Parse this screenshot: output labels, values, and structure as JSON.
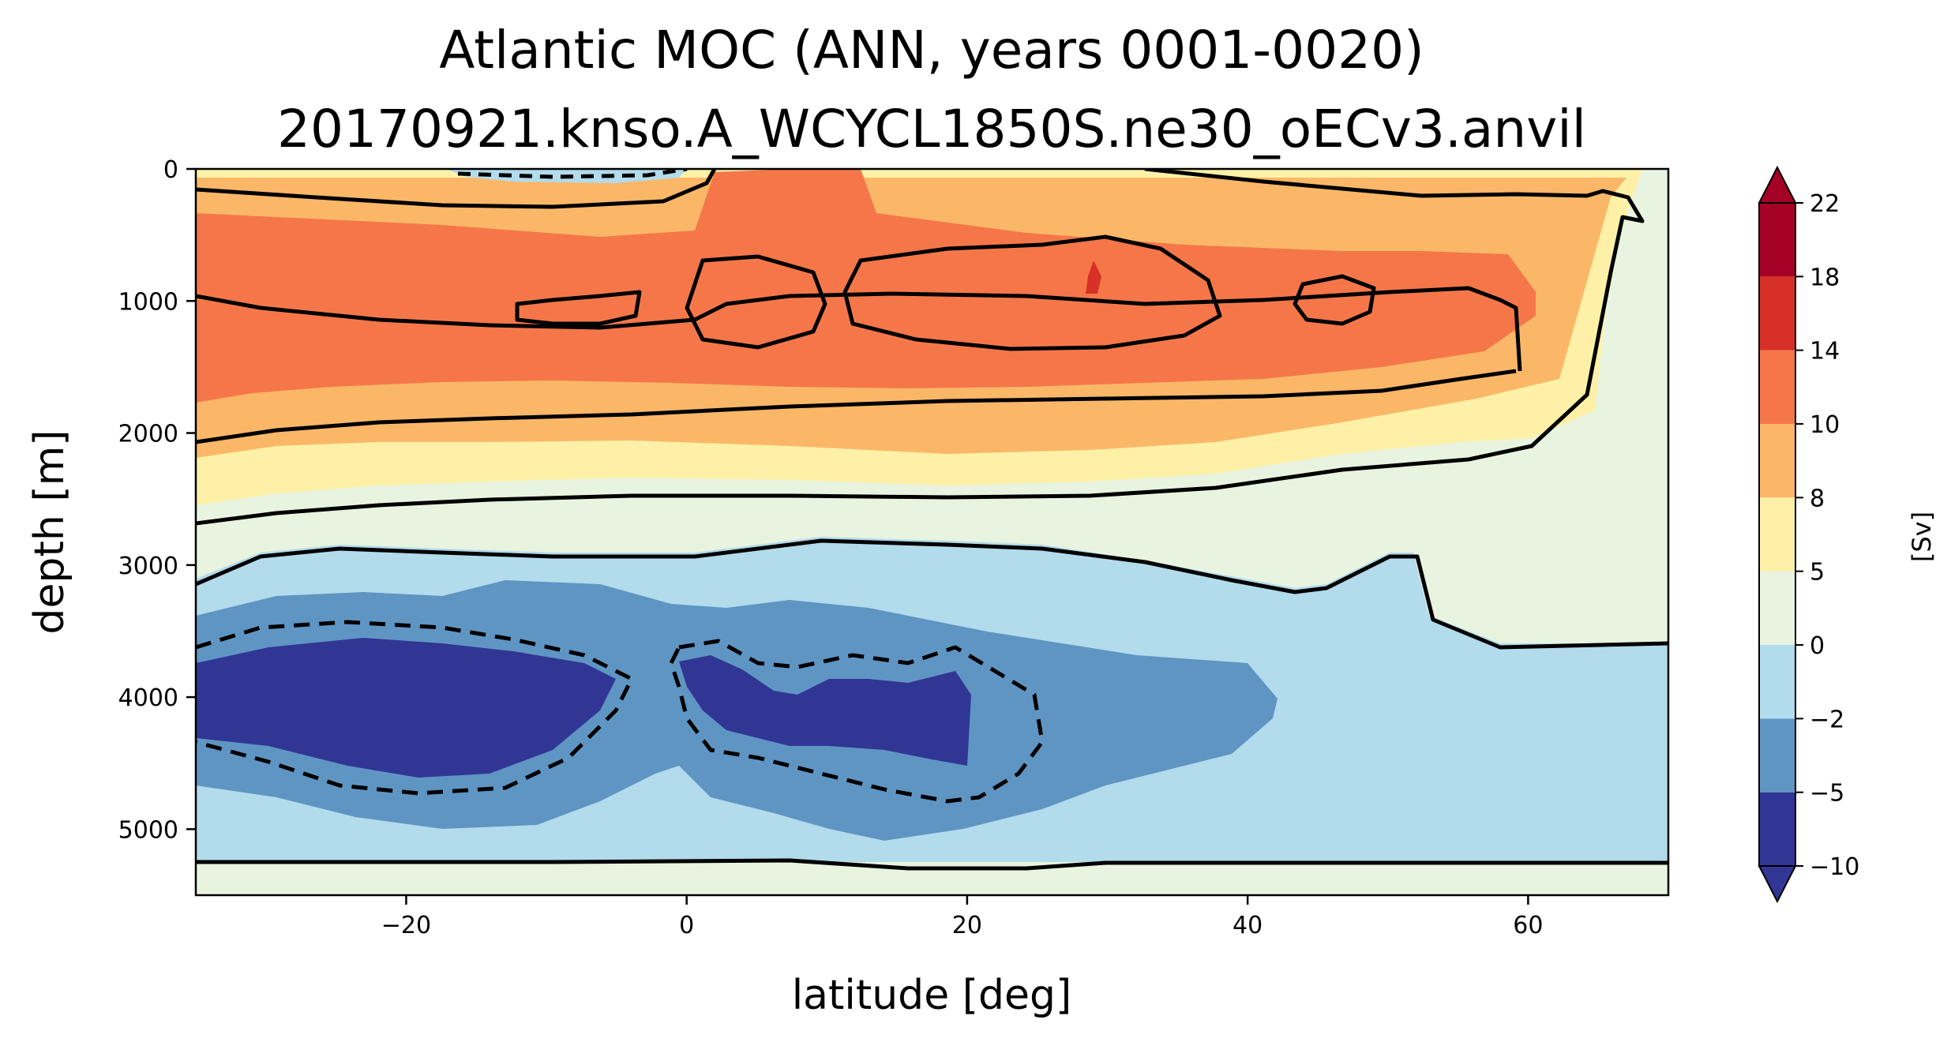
{
  "chart_data": {
    "type": "contourf",
    "title": "Atlantic MOC (ANN, years 0001-0020)",
    "subtitle": "20170921.knso.A_WCYCL1850S.ne30_oECv3.anvil",
    "xlabel": "latitude [deg]",
    "ylabel": "depth [m]",
    "xlim": [
      -35,
      70
    ],
    "ylim": [
      5500,
      0
    ],
    "y_inverted": true,
    "xticks": [
      -20,
      0,
      20,
      40,
      60
    ],
    "xtick_labels": [
      "−20",
      "0",
      "20",
      "40",
      "60"
    ],
    "yticks": [
      0,
      1000,
      2000,
      3000,
      4000,
      5000
    ],
    "ytick_labels": [
      "0",
      "1000",
      "2000",
      "3000",
      "4000",
      "5000"
    ],
    "colorbar": {
      "label": "[Sv]",
      "levels": [
        -10,
        -5,
        -2,
        0,
        5,
        8,
        10,
        14,
        18,
        22
      ],
      "level_labels": [
        "−10",
        "−5",
        "−2",
        "0",
        "5",
        "8",
        "10",
        "14",
        "18",
        "22"
      ],
      "colors": [
        "#313695",
        "#5f95c3",
        "#b2dbeb",
        "#e8f4e0",
        "#fef1a7",
        "#fbb768",
        "#f57749",
        "#d73027",
        "#a50026"
      ],
      "under_color": "#313695",
      "over_color": "#a50026",
      "extend": "both"
    },
    "regions": [
      {
        "band": "5 to 8",
        "lat_range": [
          -35,
          67
        ],
        "depth_range": [
          0,
          2650
        ]
      },
      {
        "band": "8 to 10",
        "lat_range": [
          -35,
          66
        ],
        "depth_range": [
          50,
          2300
        ]
      },
      {
        "band": "10 to 14",
        "lat_range": [
          -35,
          62
        ],
        "depth_range": [
          200,
          1800
        ]
      },
      {
        "band": "14 to 18",
        "lat_range": [
          28.5,
          29.5
        ],
        "depth_range": [
          650,
          950
        ]
      },
      {
        "band": "-2 to 0",
        "lat_range": [
          -35,
          70
        ],
        "depth_range": [
          2700,
          5450
        ]
      },
      {
        "band": "-5 to -2",
        "lat_range": [
          -35,
          43
        ],
        "depth_range": [
          3150,
          5050
        ]
      },
      {
        "band": "-10 to -5",
        "lat_range": [
          -35,
          20
        ],
        "depth_range": [
          3550,
          4600
        ]
      },
      {
        "band": "-2 to 0 (surface cell)",
        "lat_range": [
          -17,
          0
        ],
        "depth_range": [
          0,
          80
        ]
      }
    ],
    "contour_lines": {
      "solid": "positive values (0, 10 Sv)",
      "dashed": "negative values (-5 Sv)"
    }
  }
}
